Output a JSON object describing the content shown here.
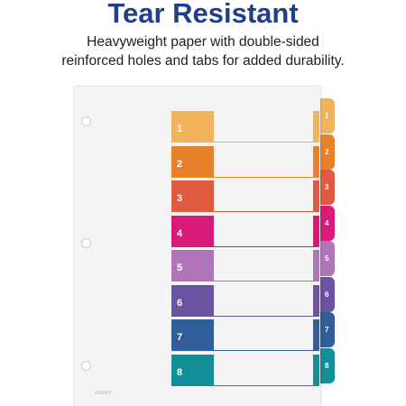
{
  "headline": "Tear Resistant",
  "subtext_line1": "Heavyweight paper with double-sided",
  "subtext_line2": "reinforced holes and tabs for added durability.",
  "brand": "AVERY",
  "tabs": [
    {
      "label": "1",
      "color": "#f3b35a"
    },
    {
      "label": "2",
      "color": "#e8822a"
    },
    {
      "label": "3",
      "color": "#e05a40"
    },
    {
      "label": "4",
      "color": "#d81b77"
    },
    {
      "label": "5",
      "color": "#b075b8"
    },
    {
      "label": "6",
      "color": "#6a53a1"
    },
    {
      "label": "7",
      "color": "#2f5e9b"
    },
    {
      "label": "8",
      "color": "#138f98"
    }
  ]
}
